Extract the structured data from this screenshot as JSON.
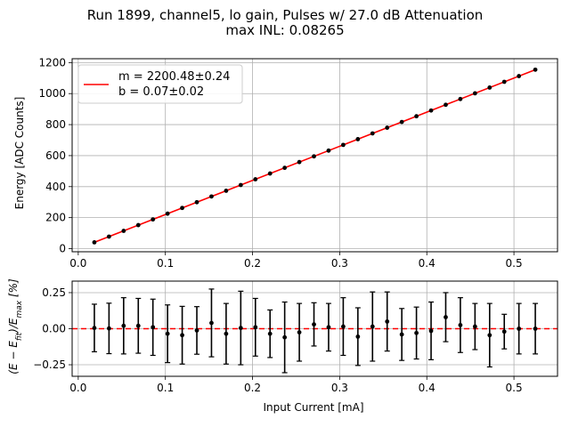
{
  "figure": {
    "title_line1": "Run 1899, channel5, lo gain, Pulses w/ 27.0 dB Attenuation",
    "title_line2": "max INL: 0.08265"
  },
  "chart_data": [
    {
      "type": "scatter",
      "panel": "main",
      "xlabel": "",
      "ylabel": "Energy [ADC Counts]",
      "xlim": [
        -0.007,
        0.55
      ],
      "ylim": [
        -20,
        1225
      ],
      "xticks": [
        "0.0",
        "0.1",
        "0.2",
        "0.3",
        "0.4",
        "0.5"
      ],
      "yticks": [
        "0",
        "200",
        "400",
        "600",
        "800",
        "1000",
        "1200"
      ],
      "grid": true,
      "legend_position": "top-left",
      "fit_line": {
        "color": "#ff0000",
        "slope": 2200.48,
        "intercept": 0.07,
        "label_m": "m = 2200.48±0.24",
        "label_b": "b = 0.07±0.02"
      },
      "points_color": "#000000",
      "x": [
        0.0185,
        0.0353,
        0.0521,
        0.0689,
        0.0857,
        0.1025,
        0.1193,
        0.1361,
        0.1529,
        0.1697,
        0.1865,
        0.2033,
        0.2201,
        0.2369,
        0.2537,
        0.2705,
        0.2873,
        0.3041,
        0.3209,
        0.3377,
        0.3545,
        0.3713,
        0.3881,
        0.4049,
        0.4217,
        0.4385,
        0.4553,
        0.4721,
        0.4889,
        0.5057,
        0.5245
      ],
      "y": [
        40.8,
        77.7,
        114.7,
        151.7,
        188.7,
        225.6,
        262.6,
        299.6,
        336.5,
        373.5,
        410.5,
        447.4,
        484.4,
        521.4,
        558.3,
        595.3,
        632.3,
        669.2,
        706.2,
        743.2,
        780.1,
        817.1,
        854.1,
        891.0,
        928.0,
        965.0,
        1001.9,
        1038.9,
        1075.9,
        1112.8,
        1154.2
      ]
    },
    {
      "type": "scatter",
      "panel": "residual",
      "xlabel": "Input Current [mA]",
      "ylabel": "(E − E_fit)/E_max [%]",
      "ylabel_parts": [
        "(E − E",
        "fit",
        ")/E",
        "max",
        " [%]"
      ],
      "xlim": [
        -0.007,
        0.55
      ],
      "ylim": [
        -0.33,
        0.33
      ],
      "xticks": [
        "0.0",
        "0.1",
        "0.2",
        "0.3",
        "0.4",
        "0.5"
      ],
      "yticks": [
        "−0.25",
        "0.00",
        "0.25"
      ],
      "ytick_values": [
        -0.25,
        0.0,
        0.25
      ],
      "grid": true,
      "reference_line": {
        "y": 0.0,
        "color": "#ff0000",
        "style": "dashed"
      },
      "x": [
        0.0185,
        0.0353,
        0.0521,
        0.0689,
        0.0857,
        0.1025,
        0.1193,
        0.1361,
        0.1529,
        0.1697,
        0.1865,
        0.2033,
        0.2201,
        0.2369,
        0.2537,
        0.2705,
        0.2873,
        0.3041,
        0.3209,
        0.3377,
        0.3545,
        0.3713,
        0.3881,
        0.4049,
        0.4217,
        0.4385,
        0.4553,
        0.4721,
        0.4889,
        0.5057,
        0.5245
      ],
      "y": [
        0.005,
        0.002,
        0.02,
        0.02,
        0.01,
        -0.035,
        -0.045,
        -0.012,
        0.04,
        -0.035,
        0.005,
        0.01,
        -0.035,
        -0.06,
        -0.025,
        0.03,
        0.01,
        0.015,
        -0.055,
        0.015,
        0.05,
        -0.04,
        -0.03,
        -0.015,
        0.08,
        0.025,
        0.015,
        -0.045,
        -0.02,
        0.0,
        0.0
      ],
      "yerr": [
        0.165,
        0.175,
        0.195,
        0.19,
        0.195,
        0.2,
        0.2,
        0.165,
        0.235,
        0.21,
        0.255,
        0.2,
        0.165,
        0.245,
        0.2,
        0.15,
        0.165,
        0.2,
        0.2,
        0.24,
        0.205,
        0.18,
        0.18,
        0.2,
        0.17,
        0.19,
        0.16,
        0.22,
        0.12,
        0.175,
        0.175
      ]
    }
  ]
}
